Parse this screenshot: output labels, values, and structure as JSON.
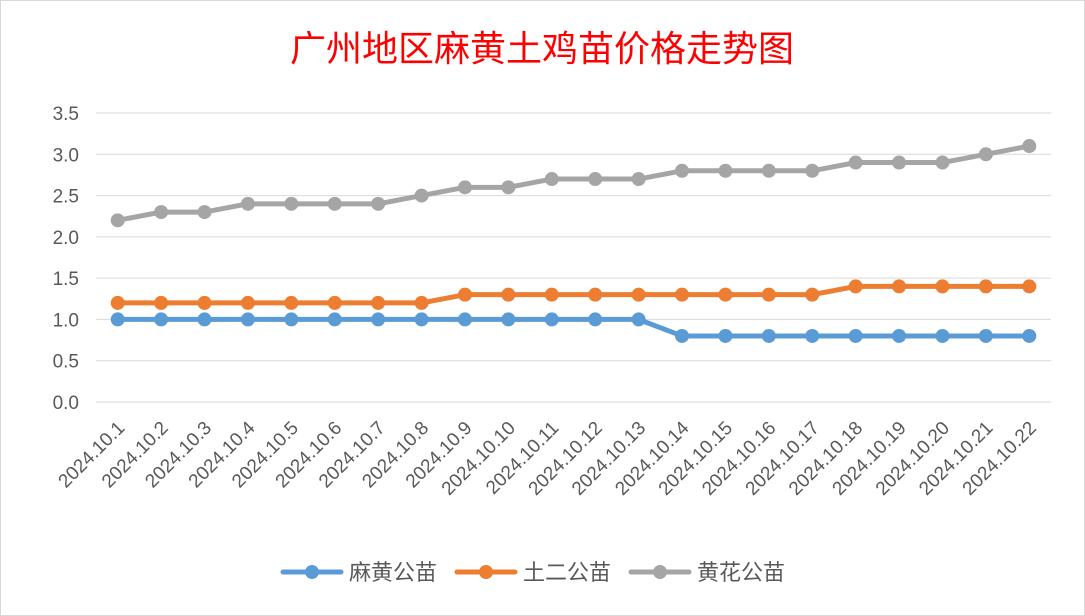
{
  "chart_data": {
    "type": "line",
    "title": "广州地区麻黄土鸡苗价格走势图",
    "title_color": "#ff0000",
    "categories": [
      "2024.10.1",
      "2024.10.2",
      "2024.10.3",
      "2024.10.4",
      "2024.10.5",
      "2024.10.6",
      "2024.10.7",
      "2024.10.8",
      "2024.10.9",
      "2024.10.10",
      "2024.10.11",
      "2024.10.12",
      "2024.10.13",
      "2024.10.14",
      "2024.10.15",
      "2024.10.16",
      "2024.10.17",
      "2024.10.18",
      "2024.10.19",
      "2024.10.20",
      "2024.10.21",
      "2024.10.22"
    ],
    "ylim": [
      0,
      3.5
    ],
    "yticks": [
      "0.0",
      "0.5",
      "1.0",
      "1.5",
      "2.0",
      "2.5",
      "3.0",
      "3.5"
    ],
    "grid": true,
    "legend_position": "bottom",
    "series": [
      {
        "name": "麻黄公苗",
        "color": "#5b9bd5",
        "values": [
          1.0,
          1.0,
          1.0,
          1.0,
          1.0,
          1.0,
          1.0,
          1.0,
          1.0,
          1.0,
          1.0,
          1.0,
          1.0,
          0.8,
          0.8,
          0.8,
          0.8,
          0.8,
          0.8,
          0.8,
          0.8,
          0.8
        ]
      },
      {
        "name": "土二公苗",
        "color": "#ed7d31",
        "values": [
          1.2,
          1.2,
          1.2,
          1.2,
          1.2,
          1.2,
          1.2,
          1.2,
          1.3,
          1.3,
          1.3,
          1.3,
          1.3,
          1.3,
          1.3,
          1.3,
          1.3,
          1.4,
          1.4,
          1.4,
          1.4,
          1.4
        ]
      },
      {
        "name": "黄花公苗",
        "color": "#a5a5a5",
        "values": [
          2.2,
          2.3,
          2.3,
          2.4,
          2.4,
          2.4,
          2.4,
          2.5,
          2.6,
          2.6,
          2.7,
          2.7,
          2.7,
          2.8,
          2.8,
          2.8,
          2.8,
          2.9,
          2.9,
          2.9,
          3.0,
          3.1
        ]
      }
    ]
  }
}
